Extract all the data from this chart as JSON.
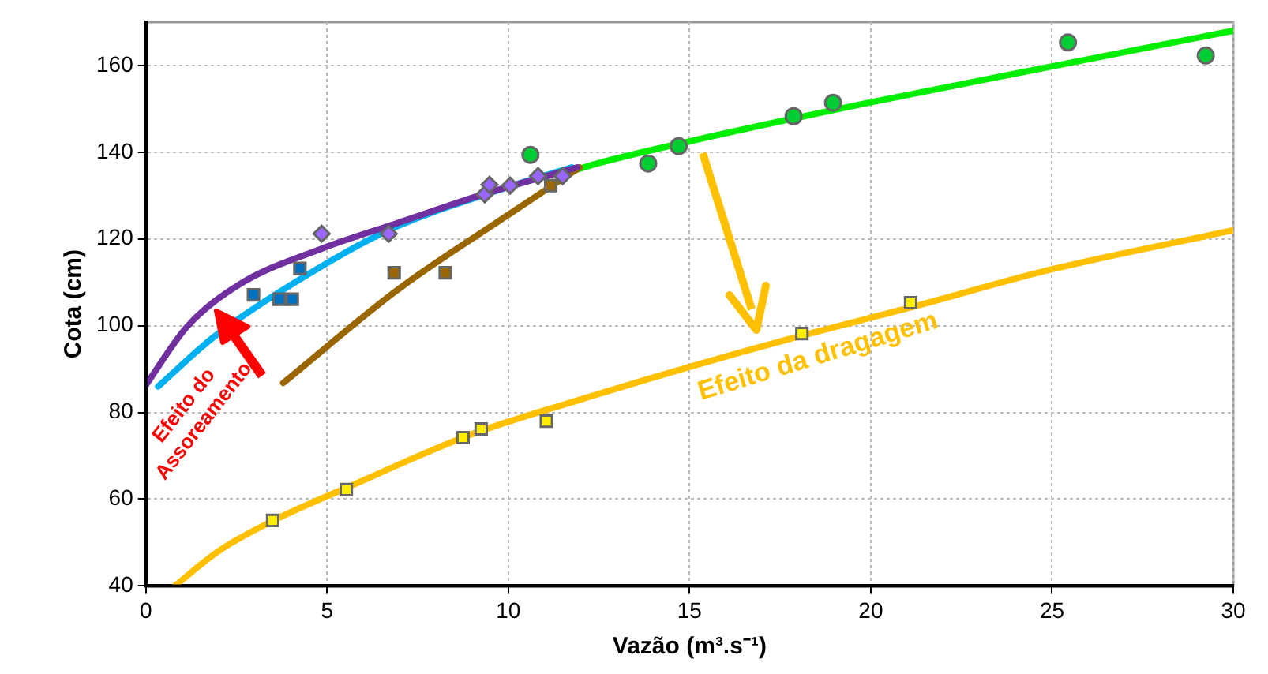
{
  "chart_data": {
    "type": "scatter",
    "xlabel": "Vazão (m³.s⁻¹)",
    "ylabel": "Cota (cm)",
    "xlim": [
      0,
      30
    ],
    "xticks": [
      0,
      5,
      10,
      15,
      20,
      25,
      30
    ],
    "ylim": [
      40,
      170
    ],
    "yticks": [
      40,
      60,
      80,
      100,
      120,
      140,
      160
    ],
    "grid": true,
    "legend": false,
    "annotations": [
      "Efeito do\nAssoreamento",
      "Efeito da dragagem"
    ],
    "series": [
      {
        "type": "line",
        "color": "#7030a0",
        "marker": "none",
        "x": [
          0,
          1.13,
          2.6,
          4.83,
          6.95,
          9.35,
          11.9
        ],
        "values": [
          86.3,
          99.7,
          109.6,
          117.7,
          123.7,
          130.4,
          136.5
        ]
      },
      {
        "type": "line",
        "color": "#00b0f0",
        "marker": "none",
        "x": [
          0.34,
          1.86,
          4.04,
          6.66,
          9.86,
          11.75
        ],
        "values": [
          86,
          97.3,
          109.6,
          121.9,
          131.6,
          136.5
        ]
      },
      {
        "type": "line",
        "color": "#996600",
        "marker": "none",
        "x": [
          3.79,
          6.95,
          9.86,
          11.97
        ],
        "values": [
          86.8,
          108.3,
          124.8,
          136.5
        ]
      },
      {
        "type": "line",
        "color": "#00ee00",
        "marker": "none",
        "x": [
          11.5,
          12.5,
          15,
          20,
          25,
          30
        ],
        "values": [
          135,
          137.5,
          142.5,
          151.5,
          159.8,
          168
        ]
      },
      {
        "type": "line",
        "color": "#ffc000",
        "marker": "none",
        "x": [
          0.8,
          2,
          3.5,
          5.5,
          9,
          12,
          15,
          18,
          21,
          25,
          30
        ],
        "values": [
          40,
          48,
          55,
          62.5,
          75,
          83,
          90.5,
          97.5,
          104,
          113,
          122
        ]
      },
      {
        "type": "scatter",
        "color": "#9966ff",
        "marker": "diamond",
        "x": [
          4.85,
          6.7,
          9.35,
          9.48,
          10.05,
          10.82,
          11.5
        ],
        "values": [
          121.2,
          121.2,
          130.3,
          132.5,
          132.3,
          134.5,
          134.5
        ]
      },
      {
        "type": "scatter",
        "color": "#0070c0",
        "marker": "square",
        "x": [
          2.97,
          3.68,
          4.04,
          4.25
        ],
        "values": [
          107.1,
          106.1,
          106.1,
          113.2
        ]
      },
      {
        "type": "scatter",
        "color": "#996600",
        "marker": "square",
        "x": [
          6.85,
          8.26,
          11.17
        ],
        "values": [
          112.2,
          112.2,
          132.3
        ]
      },
      {
        "type": "scatter",
        "color": "#00cc33",
        "marker": "circle",
        "x": [
          10.61,
          13.86,
          14.7,
          17.87,
          18.96,
          25.44,
          29.24
        ],
        "values": [
          139.4,
          137.4,
          141.4,
          148.3,
          151.4,
          165.3,
          162.3
        ]
      },
      {
        "type": "scatter",
        "color": "#ffee00",
        "marker": "square",
        "x": [
          3.5,
          5.53,
          8.75,
          9.25,
          11.05,
          18.1,
          21.1
        ],
        "values": [
          55.1,
          62.2,
          74.2,
          76.2,
          78,
          98.2,
          105.3
        ]
      }
    ]
  }
}
